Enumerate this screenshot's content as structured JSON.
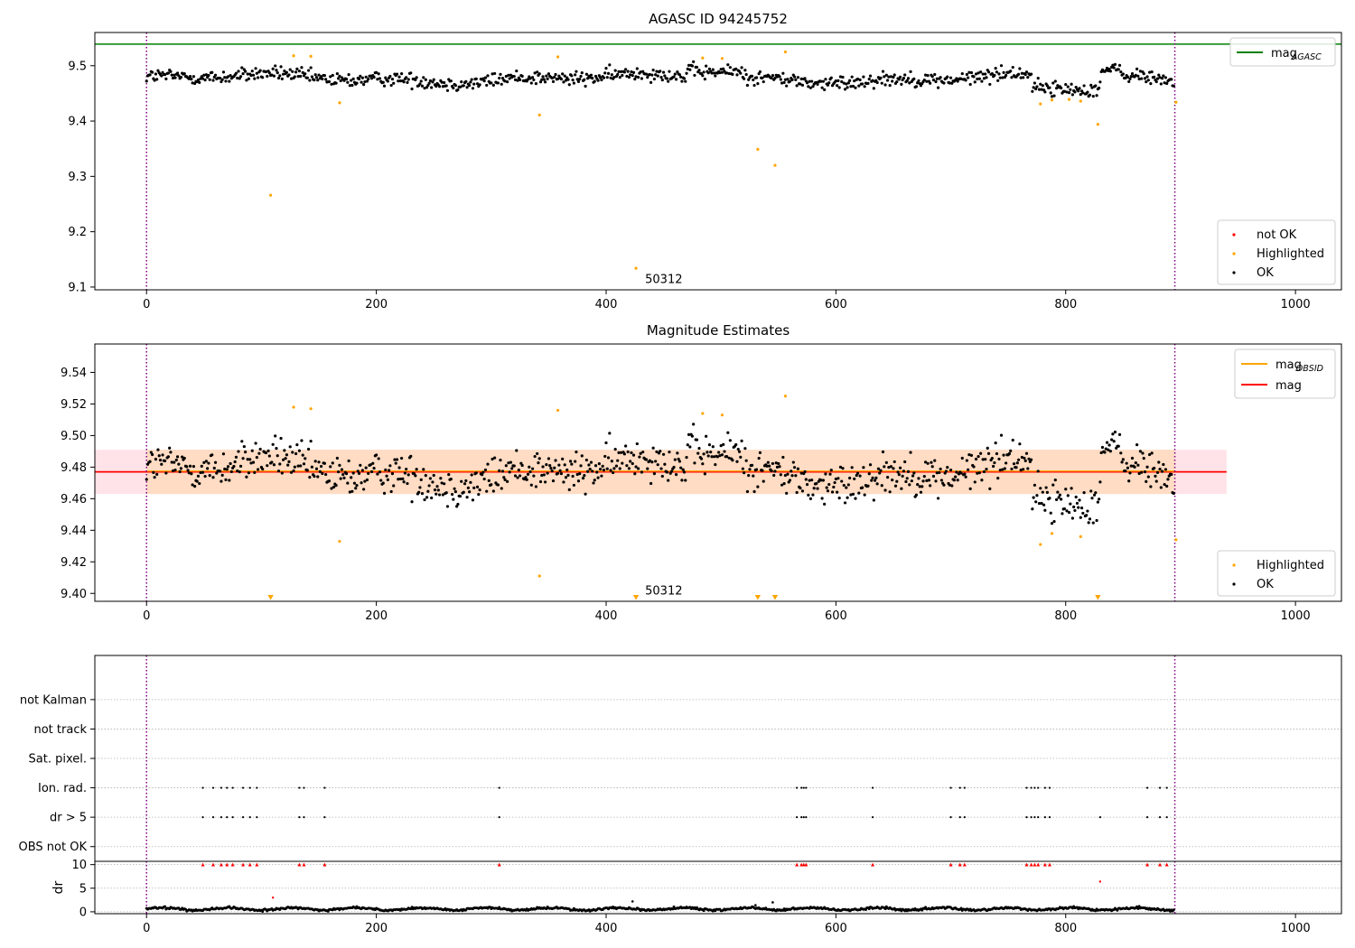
{
  "chart_data": [
    {
      "type": "scatter",
      "title": "AGASC ID 94245752",
      "xlim": [
        -45,
        1040
      ],
      "ylim": [
        9.095,
        9.56
      ],
      "xticks": [
        0,
        200,
        400,
        600,
        800,
        1000
      ],
      "yticks": [
        9.1,
        9.2,
        9.3,
        9.4,
        9.5
      ],
      "ytick_labels": [
        "9.1",
        "9.2",
        "9.3",
        "9.4",
        "9.5"
      ],
      "hlines": [
        {
          "name": "mag_AGASC",
          "y": 9.539,
          "color": "#008000",
          "xmin": -45,
          "xmax": 1040
        }
      ],
      "vlines": [
        0,
        895
      ],
      "ok_series": {
        "name": "OK",
        "color": "#000000",
        "n_points": 895,
        "mean": 9.477,
        "spread": 0.014
      },
      "highlighted": {
        "name": "Highlighted",
        "color": "#ffa500",
        "x": [
          108,
          128,
          143,
          168,
          342,
          358,
          426,
          484,
          501,
          532,
          547,
          556,
          778,
          788,
          803,
          813,
          828,
          896
        ],
        "y": [
          9.266,
          9.518,
          9.517,
          9.433,
          9.411,
          9.516,
          9.134,
          9.514,
          9.513,
          9.349,
          9.32,
          9.525,
          9.431,
          9.438,
          9.439,
          9.436,
          9.394,
          9.434
        ]
      },
      "annotations": [
        {
          "text": "50312",
          "x": 430,
          "y": 9.112
        }
      ],
      "legend_lines": {
        "placement": "upper right",
        "entries": [
          {
            "label": "mag",
            "sub": "AGASC",
            "color": "#008000"
          }
        ]
      },
      "legend_points": {
        "placement": "lower right",
        "entries": [
          {
            "label": "not OK",
            "color": "#ff0000"
          },
          {
            "label": "Highlighted",
            "color": "#ffa500"
          },
          {
            "label": "OK",
            "color": "#000000"
          }
        ]
      }
    },
    {
      "type": "scatter",
      "title": "Magnitude Estimates",
      "xlim": [
        -45,
        1040
      ],
      "ylim": [
        9.395,
        9.558
      ],
      "xticks": [
        0,
        200,
        400,
        600,
        800,
        1000
      ],
      "yticks": [
        9.4,
        9.42,
        9.44,
        9.46,
        9.48,
        9.5,
        9.52,
        9.54
      ],
      "ytick_labels": [
        "9.40",
        "9.42",
        "9.44",
        "9.46",
        "9.48",
        "9.50",
        "9.52",
        "9.54"
      ],
      "hlines": [
        {
          "name": "mag",
          "y": 9.477,
          "color": "#ff0000",
          "xmin": -45,
          "xmax": 940
        }
      ],
      "bands": [
        {
          "name": "mag_band",
          "y0": 9.463,
          "y1": 9.491,
          "color": "#ffc0cb",
          "xmin": -45,
          "xmax": 940
        },
        {
          "name": "obsid_band",
          "y0": 9.463,
          "y1": 9.491,
          "color": "#ffdab9",
          "xmin": 0,
          "xmax": 895
        }
      ],
      "vlines": [
        0,
        895
      ],
      "ok_series": {
        "name": "OK",
        "color": "#000000",
        "n_points": 895,
        "mean": 9.477,
        "spread": 0.014
      },
      "highlighted": {
        "name": "Highlighted",
        "color": "#ffa500",
        "x": [
          128,
          143,
          168,
          342,
          358,
          484,
          501,
          556,
          778,
          788,
          813,
          896
        ],
        "y": [
          9.518,
          9.517,
          9.433,
          9.411,
          9.516,
          9.514,
          9.513,
          9.525,
          9.431,
          9.438,
          9.436,
          9.434
        ]
      },
      "below_markers": {
        "color": "#ffa500",
        "x": [
          108,
          426,
          532,
          547,
          828
        ]
      },
      "annotations": [
        {
          "text": "50312",
          "x": 430,
          "y": 9.4
        }
      ],
      "legend_lines": {
        "placement": "upper right",
        "entries": [
          {
            "label": "mag",
            "sub": "OBSID",
            "color": "#ffa500"
          },
          {
            "label": "mag",
            "sub": "",
            "color": "#ff0000"
          }
        ]
      },
      "legend_points": {
        "placement": "lower right",
        "entries": [
          {
            "label": "Highlighted",
            "color": "#ffa500"
          },
          {
            "label": "OK",
            "color": "#000000"
          }
        ]
      }
    },
    {
      "type": "scatter",
      "xlim": [
        -45,
        1040
      ],
      "categories": [
        "OBS not OK",
        "dr > 5",
        "Ion. rad.",
        "Sat. pixel.",
        "not track",
        "not Kalman"
      ],
      "vlines": [
        0,
        895
      ],
      "flag_points": {
        "dr > 5": [
          49,
          58,
          65,
          70,
          75,
          84,
          90,
          96,
          133,
          137,
          155,
          307,
          566,
          570,
          572,
          574,
          632,
          700,
          708,
          712,
          766,
          770,
          773,
          776,
          782,
          786,
          830,
          871,
          882,
          888
        ],
        "Ion. rad.": [
          49,
          58,
          65,
          70,
          75,
          84,
          90,
          96,
          133,
          137,
          155,
          307,
          566,
          570,
          572,
          574,
          632,
          700,
          708,
          712,
          766,
          770,
          773,
          776,
          782,
          786,
          871,
          882,
          888
        ]
      }
    },
    {
      "type": "scatter",
      "ylabel": "dr",
      "xlim": [
        -45,
        1040
      ],
      "ylim": [
        -0.4,
        10.7
      ],
      "xticks": [
        0,
        200,
        400,
        600,
        800,
        1000
      ],
      "yticks": [
        0,
        5,
        10
      ],
      "ytick_labels": [
        "0",
        "5",
        "10"
      ],
      "vlines": [
        0,
        895
      ],
      "ok_series": {
        "name": "OK",
        "color": "#000000",
        "n_points": 895,
        "mean": 0.6,
        "spread": 0.3
      },
      "capped": {
        "color": "#ff0000",
        "y": 10,
        "x": [
          49,
          58,
          65,
          70,
          75,
          84,
          90,
          96,
          133,
          137,
          155,
          307,
          566,
          570,
          572,
          574,
          632,
          700,
          708,
          712,
          766,
          770,
          773,
          776,
          782,
          786,
          871,
          882,
          888
        ]
      },
      "extras": {
        "color": "#ff0000",
        "x": [
          110,
          830
        ],
        "y": [
          3.0,
          6.4
        ]
      },
      "outliers": {
        "color": "#000000",
        "x": [
          423,
          530,
          545
        ],
        "y": [
          2.2,
          1.4,
          2.0
        ]
      }
    }
  ]
}
